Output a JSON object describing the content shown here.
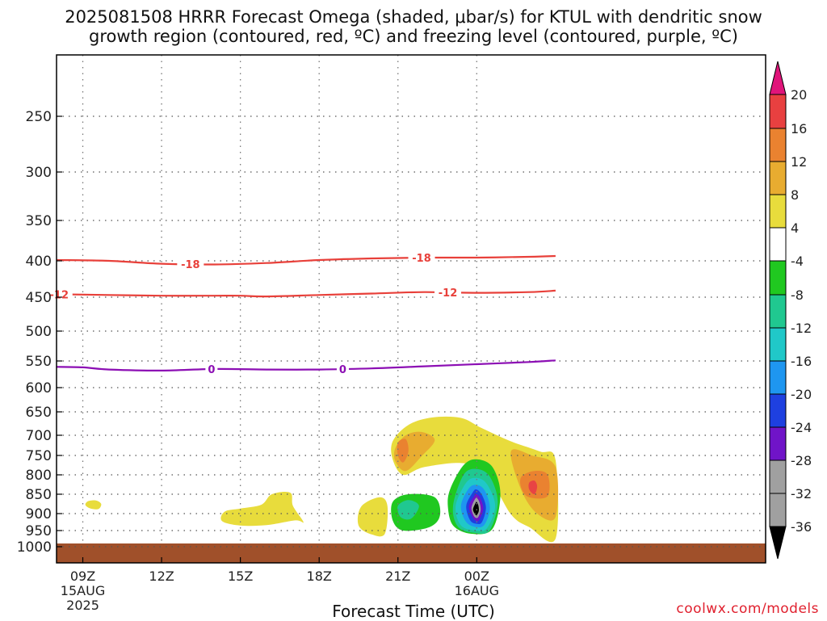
{
  "title_line1": "2025081508 HRRR Forecast Omega (shaded, μbar/s) for KTUL with dendritic snow",
  "title_line2": "growth region (contoured, red, ºC) and freezing level (contoured, purple, ºC)",
  "credit": "coolwx.com/models",
  "colors": {
    "red_contour": "#e8403a",
    "purple_contour": "#8c0fb4",
    "ground": "#a0502a",
    "grid": "#555555"
  },
  "chart_data": {
    "type": "area",
    "xlabel": "Forecast Time (UTC)",
    "ylabel": "",
    "x_range_hours": [
      8,
      35
    ],
    "y_range_hpa": [
      200,
      1010
    ],
    "y_ticks": [
      250,
      300,
      350,
      400,
      450,
      500,
      550,
      600,
      650,
      700,
      750,
      800,
      850,
      900,
      950,
      1000
    ],
    "x_ticks": [
      {
        "hour": 9,
        "label": "09Z",
        "sub1": "15AUG",
        "sub2": "2025"
      },
      {
        "hour": 12,
        "label": "12Z",
        "sub1": "",
        "sub2": ""
      },
      {
        "hour": 15,
        "label": "15Z",
        "sub1": "",
        "sub2": ""
      },
      {
        "hour": 18,
        "label": "18Z",
        "sub1": "",
        "sub2": ""
      },
      {
        "hour": 21,
        "label": "21Z",
        "sub1": "",
        "sub2": ""
      },
      {
        "hour": 24,
        "label": "00Z",
        "sub1": "16AUG",
        "sub2": ""
      }
    ],
    "grid": true,
    "contours": [
      {
        "name": "-18",
        "color": "#e8403a",
        "points": [
          [
            8,
            399
          ],
          [
            10,
            400
          ],
          [
            12,
            404
          ],
          [
            14,
            405
          ],
          [
            16,
            403
          ],
          [
            18,
            399
          ],
          [
            20,
            397
          ],
          [
            22,
            396
          ],
          [
            24,
            396
          ],
          [
            26,
            395
          ],
          [
            27,
            394
          ]
        ],
        "labels_at": [
          13.1,
          21.9
        ]
      },
      {
        "name": "-12",
        "color": "#e8403a",
        "points": [
          [
            8,
            446
          ],
          [
            10,
            447
          ],
          [
            12,
            448
          ],
          [
            14,
            448
          ],
          [
            15,
            448
          ],
          [
            16,
            449
          ],
          [
            18,
            447
          ],
          [
            20,
            445
          ],
          [
            22,
            443
          ],
          [
            24,
            444
          ],
          [
            26,
            443
          ],
          [
            27,
            441
          ]
        ],
        "labels_at": [
          8.1,
          22.9
        ]
      },
      {
        "name": "0",
        "color": "#8c0fb4",
        "points": [
          [
            8,
            561
          ],
          [
            9,
            562
          ],
          [
            10,
            566
          ],
          [
            12,
            568
          ],
          [
            14,
            565
          ],
          [
            16,
            566
          ],
          [
            18,
            566
          ],
          [
            20,
            564
          ],
          [
            22,
            560
          ],
          [
            24,
            556
          ],
          [
            26,
            552
          ],
          [
            27,
            549
          ]
        ],
        "labels_at": [
          13.9,
          18.9
        ]
      }
    ],
    "colorbar": {
      "labels": [
        "20",
        "16",
        "12",
        "8",
        "4",
        "-4",
        "-8",
        "-12",
        "-16",
        "-20",
        "-24",
        "-28",
        "-32",
        "-36"
      ],
      "colors": [
        "#e8ca20",
        "#e8a82e",
        "#e8822e",
        "#e84040",
        "#e0147a",
        "#ffffff",
        "#20c820",
        "#20c890",
        "#20c8c8",
        "#1e96f0",
        "#1e40e0",
        "#7014c8",
        "#a0a0a0",
        "#000000"
      ]
    },
    "omega_regions": [
      {
        "value": 4,
        "color": "#e8dc3c",
        "points": [
          [
            9.2,
            868
          ],
          [
            9.5,
            866
          ],
          [
            9.7,
            875
          ],
          [
            9.6,
            888
          ],
          [
            9.3,
            887
          ],
          [
            9.1,
            878
          ]
        ]
      },
      {
        "value": 4,
        "color": "#e8dc3c",
        "points": [
          [
            14.4,
            895
          ],
          [
            15,
            887
          ],
          [
            15.8,
            877
          ],
          [
            16.2,
            850
          ],
          [
            16.9,
            846
          ],
          [
            17.0,
            880
          ],
          [
            17.4,
            925
          ],
          [
            17.1,
            920
          ],
          [
            16,
            934
          ],
          [
            15,
            935
          ],
          [
            14.3,
            922
          ]
        ]
      },
      {
        "value": 4,
        "color": "#e8dc3c",
        "points": [
          [
            19.6,
            882
          ],
          [
            20.3,
            858
          ],
          [
            20.6,
            880
          ],
          [
            20.5,
            960
          ],
          [
            20,
            962
          ],
          [
            19.5,
            935
          ]
        ]
      },
      {
        "value": 4,
        "color": "#e8dc3c",
        "points": [
          [
            20.8,
            715
          ],
          [
            21.4,
            678
          ],
          [
            22.3,
            662
          ],
          [
            23.4,
            663
          ],
          [
            24.2,
            685
          ],
          [
            25.3,
            715
          ],
          [
            26.4,
            740
          ],
          [
            27,
            762
          ],
          [
            27,
            975
          ],
          [
            26,
            940
          ],
          [
            25.3,
            902
          ],
          [
            24.4,
            800
          ],
          [
            23.5,
            770
          ],
          [
            22,
            780
          ],
          [
            21.2,
            800
          ],
          [
            20.8,
            760
          ]
        ]
      },
      {
        "value": 8,
        "color": "#e8ac30",
        "points": [
          [
            20.9,
            732
          ],
          [
            21.3,
            700
          ],
          [
            21.9,
            693
          ],
          [
            22.4,
            712
          ],
          [
            21.9,
            752
          ],
          [
            21.3,
            790
          ],
          [
            20.9,
            765
          ]
        ]
      },
      {
        "value": 8,
        "color": "#e8ac30",
        "points": [
          [
            25.3,
            740
          ],
          [
            26.1,
            750
          ],
          [
            27,
            780
          ],
          [
            27,
            910
          ],
          [
            26.3,
            900
          ],
          [
            25.7,
            840
          ]
        ]
      },
      {
        "value": 12,
        "color": "#ea8230",
        "points": [
          [
            21,
            718
          ],
          [
            21.3,
            710
          ],
          [
            21.4,
            740
          ],
          [
            21.2,
            768
          ],
          [
            21,
            750
          ]
        ]
      },
      {
        "value": 12,
        "color": "#ea8230",
        "points": [
          [
            25.7,
            805
          ],
          [
            26.2,
            790
          ],
          [
            26.7,
            800
          ],
          [
            26.7,
            855
          ],
          [
            26,
            858
          ],
          [
            25.7,
            835
          ]
        ]
      },
      {
        "value": 16,
        "color": "#e84444",
        "points": [
          [
            26.0,
            820
          ],
          [
            26.2,
            815
          ],
          [
            26.3,
            830
          ],
          [
            26.2,
            850
          ],
          [
            26.0,
            838
          ]
        ]
      },
      {
        "value": -4,
        "color": "#20c820",
        "points": [
          [
            20.8,
            870
          ],
          [
            21.4,
            850
          ],
          [
            22.4,
            858
          ],
          [
            22.6,
            905
          ],
          [
            22.2,
            940
          ],
          [
            21.2,
            950
          ],
          [
            20.8,
            920
          ]
        ]
      },
      {
        "value": -8,
        "color": "#20c890",
        "points": [
          [
            21.0,
            880
          ],
          [
            21.4,
            865
          ],
          [
            21.8,
            880
          ],
          [
            21.5,
            915
          ],
          [
            21.1,
            910
          ]
        ]
      },
      {
        "value": -4,
        "color": "#20c820",
        "points": [
          [
            23.0,
            835
          ],
          [
            23.5,
            775
          ],
          [
            24.0,
            760
          ],
          [
            24.6,
            780
          ],
          [
            24.9,
            850
          ],
          [
            24.6,
            945
          ],
          [
            23.8,
            960
          ],
          [
            23.1,
            935
          ],
          [
            22.9,
            880
          ]
        ]
      },
      {
        "value": -8,
        "color": "#20c890",
        "points": [
          [
            23.1,
            880
          ],
          [
            23.5,
            800
          ],
          [
            24,
            785
          ],
          [
            24.5,
            805
          ],
          [
            24.8,
            870
          ],
          [
            24.5,
            948
          ],
          [
            24,
            958
          ],
          [
            23.3,
            940
          ]
        ]
      },
      {
        "value": -12,
        "color": "#20c8c8",
        "points": [
          [
            23.2,
            880
          ],
          [
            23.6,
            820
          ],
          [
            24,
            808
          ],
          [
            24.4,
            825
          ],
          [
            24.7,
            880
          ],
          [
            24.4,
            942
          ],
          [
            24,
            950
          ],
          [
            23.4,
            935
          ]
        ]
      },
      {
        "value": -16,
        "color": "#1e96f0",
        "points": [
          [
            23.4,
            880
          ],
          [
            23.7,
            835
          ],
          [
            24,
            826
          ],
          [
            24.3,
            840
          ],
          [
            24.5,
            885
          ],
          [
            24.3,
            932
          ],
          [
            24,
            940
          ],
          [
            23.6,
            925
          ]
        ]
      },
      {
        "value": -20,
        "color": "#1e40e0",
        "points": [
          [
            23.6,
            880
          ],
          [
            23.85,
            845
          ],
          [
            24,
            838
          ],
          [
            24.2,
            852
          ],
          [
            24.35,
            885
          ],
          [
            24.2,
            925
          ],
          [
            24,
            930
          ],
          [
            23.75,
            920
          ]
        ]
      },
      {
        "value": -28,
        "color": "#7014c8",
        "points": [
          [
            23.7,
            882
          ],
          [
            23.9,
            855
          ],
          [
            24,
            850
          ],
          [
            24.15,
            862
          ],
          [
            24.25,
            888
          ],
          [
            24.1,
            918
          ],
          [
            24,
            922
          ],
          [
            23.85,
            912
          ]
        ]
      },
      {
        "value": -32,
        "color": "#a0a0a0",
        "points": [
          [
            23.8,
            885
          ],
          [
            23.92,
            864
          ],
          [
            24.0,
            860
          ],
          [
            24.1,
            870
          ],
          [
            24.15,
            890
          ],
          [
            24.06,
            910
          ],
          [
            23.95,
            912
          ],
          [
            23.86,
            902
          ]
        ]
      },
      {
        "value": -36,
        "color": "#000000",
        "points": [
          [
            23.86,
            888
          ],
          [
            23.96,
            872
          ],
          [
            24.0,
            870
          ],
          [
            24.06,
            878
          ],
          [
            24.08,
            892
          ],
          [
            24.02,
            903
          ],
          [
            23.96,
            904
          ],
          [
            23.9,
            898
          ]
        ]
      }
    ]
  }
}
